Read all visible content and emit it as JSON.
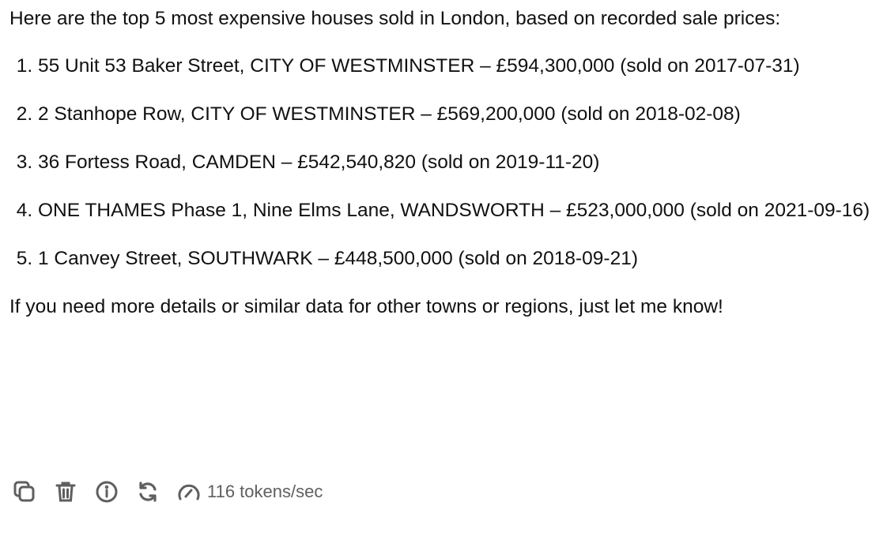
{
  "message": {
    "intro": "Here are the top 5 most expensive houses sold in London, based on recorded sale prices:",
    "items": [
      "55 Unit 53 Baker Street, CITY OF WESTMINSTER – £594,300,000 (sold on 2017-07-31)",
      "2 Stanhope Row, CITY OF WESTMINSTER – £569,200,000 (sold on 2018-02-08)",
      "36 Fortess Road, CAMDEN – £542,540,820 (sold on 2019-11-20)",
      "ONE THAMES Phase 1, Nine Elms Lane, WANDSWORTH – £523,000,000 (sold on 2021-09-16)",
      "1 Canvey Street, SOUTHWARK – £448,500,000 (sold on 2018-09-21)"
    ],
    "outro": "If you need more details or similar data for other towns or regions, just let me know!"
  },
  "toolbar": {
    "icons": [
      "copy-icon",
      "trash-icon",
      "info-icon",
      "regenerate-icon",
      "speedometer-icon"
    ],
    "speed_label": "116 tokens/sec",
    "icon_color": "#5f5f5f"
  }
}
